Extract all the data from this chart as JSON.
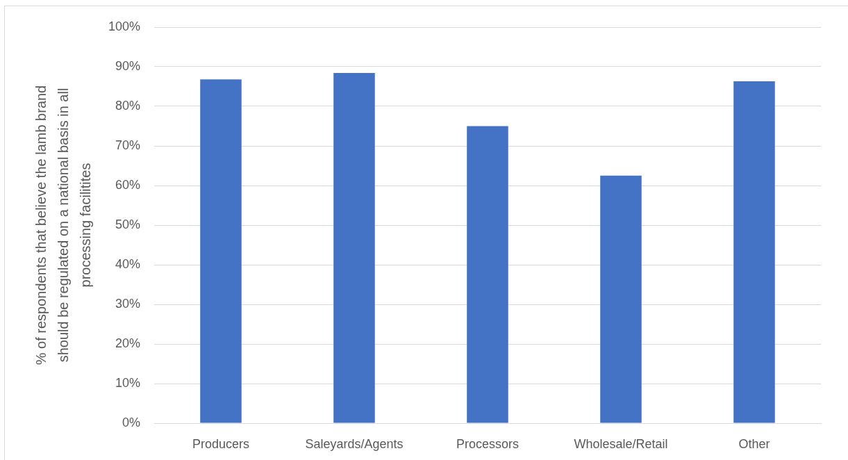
{
  "chart_data": {
    "type": "bar",
    "ylabel": "% of respondents that believe the lamb brand should be regulated on a national basis in all processing facilitites",
    "categories": [
      "Producers",
      "Saleyards/Agents",
      "Processors",
      "Wholesale/Retail",
      "Other"
    ],
    "values": [
      86.8,
      88.4,
      75.0,
      62.5,
      86.3
    ],
    "color": "#4472c4",
    "ylim": [
      0,
      100
    ],
    "yticks": [
      {
        "value": 0,
        "label": "0%"
      },
      {
        "value": 10,
        "label": "10%"
      },
      {
        "value": 20,
        "label": "20%"
      },
      {
        "value": 30,
        "label": "30%"
      },
      {
        "value": 40,
        "label": "40%"
      },
      {
        "value": 50,
        "label": "50%"
      },
      {
        "value": 60,
        "label": "60%"
      },
      {
        "value": 70,
        "label": "70%"
      },
      {
        "value": 80,
        "label": "80%"
      },
      {
        "value": 90,
        "label": "90%"
      },
      {
        "value": 100,
        "label": "100%"
      }
    ],
    "grid": "y"
  }
}
